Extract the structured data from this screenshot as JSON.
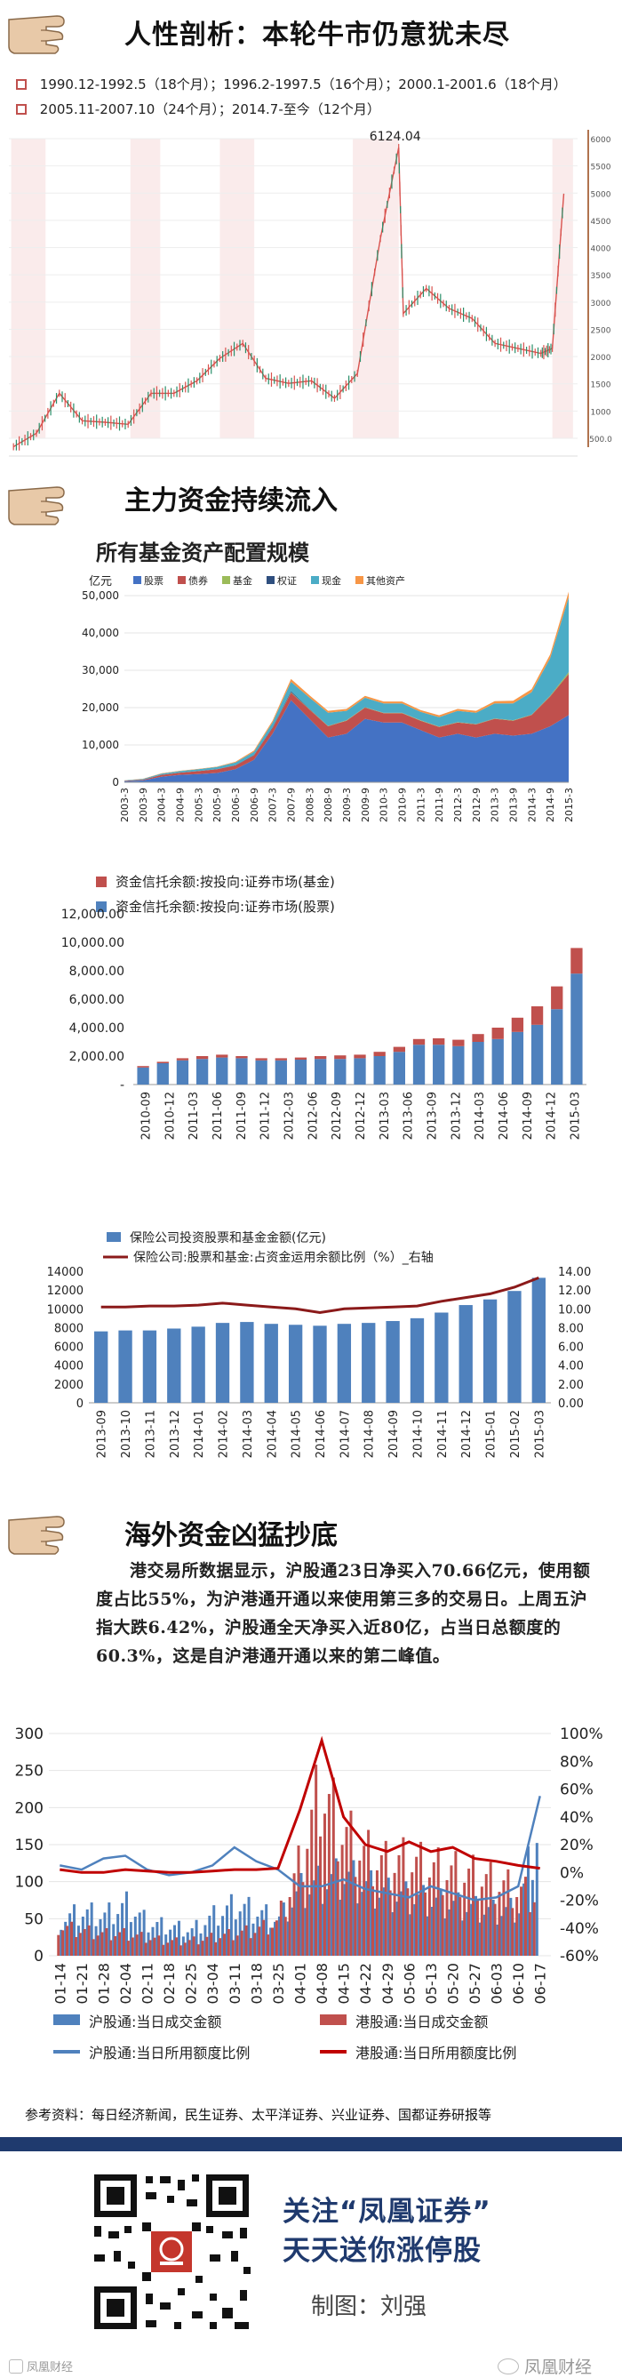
{
  "section1": {
    "title": "人性剖析：本轮牛市仍意犹未尽",
    "legend_line1": "1990.12-1992.5（18个月）；1996.2-1997.5（16个月）；2000.1-2001.6（18个月）",
    "legend_line2": "2005.11-2007.10（24个月）；2014.7-至今（12个月）",
    "chart_data": {
      "type": "line",
      "title": "",
      "peak_label": "6124.04",
      "y_ticks": [
        "6000",
        "5500",
        "5000",
        "4500",
        "4000",
        "3500",
        "3000",
        "2500",
        "2000",
        "1500",
        "1000",
        "500.0"
      ],
      "ylim": [
        300,
        6300
      ],
      "x": [
        1991,
        1992,
        1993,
        1994,
        1995,
        1996,
        1997,
        1998,
        1999,
        2000,
        2001,
        2002,
        2003,
        2004,
        2005,
        2006,
        2007,
        2007.8,
        2008,
        2009,
        2010,
        2011,
        2012,
        2013,
        2014,
        2014.5,
        2015
      ],
      "values": [
        130,
        400,
        1200,
        650,
        620,
        580,
        1200,
        1200,
        1450,
        1900,
        2200,
        1500,
        1400,
        1450,
        1100,
        1600,
        4300,
        6124,
        2800,
        3300,
        2900,
        2700,
        2200,
        2100,
        2000,
        2100,
        5200
      ],
      "highlight_periods": [
        [
          1990.9,
          1992.4
        ],
        [
          1996.1,
          1997.4
        ],
        [
          2000.0,
          2001.5
        ],
        [
          2005.8,
          2007.8
        ],
        [
          2014.5,
          2015.4
        ]
      ]
    }
  },
  "section2": {
    "title": "主力资金持续流入",
    "chart1": {
      "title": "所有基金资产配置规模",
      "unit": "亿元",
      "chart_data": {
        "type": "area",
        "categories": [
          "2003-3",
          "2003-9",
          "2004-3",
          "2004-9",
          "2005-3",
          "2005-9",
          "2006-3",
          "2006-9",
          "2007-3",
          "2007-9",
          "2008-3",
          "2008-9",
          "2009-3",
          "2009-9",
          "2010-3",
          "2010-9",
          "2011-3",
          "2011-9",
          "2012-3",
          "2012-9",
          "2013-3",
          "2013-9",
          "2014-3",
          "2014-9",
          "2015-3"
        ],
        "ylim": [
          0,
          50000
        ],
        "y_ticks": [
          "50,000",
          "40,000",
          "30,000",
          "20,000",
          "10,000",
          "0"
        ],
        "series": [
          {
            "name": "股票",
            "color": "#4472c4",
            "values": [
              300,
              500,
              1500,
              2000,
              2200,
              2500,
              3500,
              6000,
              13000,
              22000,
              17000,
              12000,
              13000,
              17000,
              16000,
              16000,
              14000,
              12000,
              13000,
              12000,
              13000,
              12500,
              13000,
              15000,
              18000
            ]
          },
          {
            "name": "债券",
            "color": "#c0504d",
            "values": [
              100,
              200,
              500,
              600,
              800,
              1000,
              1000,
              1200,
              1500,
              2000,
              2500,
              3000,
              3500,
              3000,
              2500,
              2500,
              2500,
              2800,
              3000,
              3500,
              4000,
              4000,
              5000,
              8000,
              11000
            ]
          },
          {
            "name": "基金",
            "color": "#9bbb59",
            "values": [
              0,
              0,
              0,
              0,
              0,
              0,
              0,
              0,
              0,
              100,
              100,
              100,
              100,
              100,
              100,
              100,
              100,
              100,
              100,
              100,
              100,
              100,
              100,
              200,
              500
            ]
          },
          {
            "name": "权证",
            "color": "#2f4f7f",
            "values": [
              0,
              0,
              0,
              0,
              0,
              0,
              100,
              100,
              200,
              300,
              100,
              50,
              50,
              50,
              50,
              50,
              50,
              50,
              50,
              50,
              50,
              50,
              50,
              50,
              50
            ]
          },
          {
            "name": "现金",
            "color": "#4bacc6",
            "values": [
              100,
              200,
              300,
              400,
              500,
              600,
              700,
              900,
              1300,
              2500,
              3000,
              3500,
              2500,
              2500,
              2500,
              2500,
              2200,
              2500,
              3000,
              3000,
              4000,
              4500,
              6000,
              10000,
              20000
            ]
          },
          {
            "name": "其他资产",
            "color": "#f79646",
            "values": [
              50,
              50,
              100,
              100,
              100,
              100,
              200,
              300,
              500,
              800,
              600,
              500,
              500,
              500,
              500,
              500,
              500,
              500,
              500,
              500,
              600,
              700,
              800,
              1000,
              1500
            ]
          }
        ]
      }
    },
    "chart2": {
      "chart_data": {
        "type": "bar",
        "categories": [
          "2010-09",
          "2010-10",
          "2010-12",
          "2011-03",
          "2011-04",
          "2011-06",
          "2011-09",
          "2011-10",
          "2011-12",
          "2012-03",
          "2012-06",
          "2012-09",
          "2012-10",
          "2012-12",
          "2013-03",
          "2013-06",
          "2013-09",
          "2013-12",
          "2014-03",
          "2014-06",
          "2014-09",
          "2014-12",
          "2015-03"
        ],
        "tick_labels": [
          "2010-09",
          "2010-12",
          "2011-03",
          "2011-06",
          "2011-09",
          "2011-12",
          "2012-03",
          "2012-06",
          "2012-09",
          "2012-12",
          "2013-03",
          "2013-06",
          "2013-09",
          "2013-12",
          "2014-03",
          "2014-06",
          "2014-09",
          "2014-12",
          "2015-03"
        ],
        "ylim": [
          0,
          12000
        ],
        "y_ticks": [
          "12,000.00",
          "10,000.00",
          "8,000.00",
          "6,000.00",
          "4,000.00",
          "2,000.00",
          "-"
        ],
        "series": [
          {
            "name": "资金信托余额:按投向:证券市场(基金)",
            "color": "#c0504d",
            "values": [
              100,
              100,
              150,
              200,
              200,
              150,
              150,
              150,
              150,
              200,
              250,
              250,
              300,
              350,
              400,
              450,
              450,
              550,
              800,
              1000,
              1300,
              1600,
              1800
            ]
          },
          {
            "name": "资金信托余额:按投向:证券市场(股票)",
            "color": "#4f81bd",
            "values": [
              1200,
              1500,
              1700,
              1800,
              1900,
              1850,
              1700,
              1700,
              1750,
              1800,
              1800,
              1850,
              2000,
              2300,
              2800,
              2800,
              2700,
              3000,
              3200,
              3700,
              4200,
              5300,
              7800
            ]
          }
        ]
      }
    },
    "chart3": {
      "chart_data": {
        "type": "bar",
        "categories": [
          "2013-09",
          "2013-10",
          "2013-11",
          "2013-12",
          "2014-01",
          "2014-02",
          "2014-03",
          "2014-04",
          "2014-05",
          "2014-06",
          "2014-07",
          "2014-08",
          "2014-09",
          "2014-10",
          "2014-11",
          "2014-12",
          "2015-01",
          "2015-02",
          "2015-03"
        ],
        "ylim": [
          0,
          14000
        ],
        "y_ticks": [
          "14000",
          "12000",
          "10000",
          "8000",
          "6000",
          "4000",
          "2000",
          "0"
        ],
        "y2lim": [
          0,
          14
        ],
        "y2_ticks": [
          "14.00",
          "12.00",
          "10.00",
          "8.00",
          "6.00",
          "4.00",
          "2.00",
          "0.00"
        ],
        "series": [
          {
            "name": "保险公司投资股票和基金金额(亿元)",
            "color": "#4f81bd",
            "values": [
              7600,
              7700,
              7700,
              7900,
              8100,
              8500,
              8600,
              8400,
              8300,
              8200,
              8400,
              8500,
              8700,
              9000,
              9600,
              10400,
              11000,
              11900,
              13300
            ]
          },
          {
            "name": "保险公司:股票和基金:占资金运用余额比例（%）_右轴",
            "color": "#8b1a1a",
            "values": [
              10.2,
              10.2,
              10.3,
              10.3,
              10.4,
              10.6,
              10.4,
              10.2,
              10.0,
              9.6,
              10.0,
              10.1,
              10.2,
              10.3,
              10.8,
              11.2,
              11.6,
              12.3,
              13.3
            ]
          }
        ]
      }
    }
  },
  "section3": {
    "title": "海外资金凶猛抄底",
    "paragraph": "港交易所数据显示，沪股通23日净买入70.66亿元，使用额度占比55%，为沪港通开通以来使用第三多的交易日。上周五沪指大跌6.42%，沪股通全天净买入近80亿，占当日总额度的60.3%，这是自沪港通开通以来的第二峰值。",
    "chart_data": {
      "type": "bar",
      "categories": [
        "01-14",
        "01-21",
        "01-28",
        "02-04",
        "02-11",
        "02-18",
        "02-25",
        "03-04",
        "03-11",
        "03-18",
        "03-25",
        "04-01",
        "04-08",
        "04-15",
        "04-22",
        "04-29",
        "05-06",
        "05-13",
        "05-20",
        "05-27",
        "06-03",
        "06-10",
        "06-17"
      ],
      "ylim": [
        0,
        300
      ],
      "y_ticks": [
        "300",
        "250",
        "200",
        "150",
        "100",
        "50",
        "0"
      ],
      "y2_ticks": [
        "100%",
        "80%",
        "60%",
        "40%",
        "20%",
        "0%",
        "-20%",
        "-40%",
        "-60%"
      ],
      "series": [
        {
          "name": "沪股通:当日成交金额",
          "color": "#4f81bd",
          "values": [
            50,
            60,
            55,
            70,
            45,
            40,
            35,
            55,
            70,
            60,
            50,
            90,
            100,
            110,
            95,
            85,
            80,
            75,
            70,
            65,
            60,
            65,
            200
          ]
        },
        {
          "name": "港股通:当日成交金额",
          "color": "#c0504d",
          "values": [
            40,
            35,
            30,
            30,
            25,
            20,
            20,
            25,
            30,
            35,
            45,
            120,
            230,
            170,
            140,
            125,
            130,
            120,
            115,
            110,
            100,
            90,
            80
          ]
        },
        {
          "name": "沪股通:当日所用额度比例",
          "color": "#4f81bd",
          "values": [
            5,
            2,
            10,
            12,
            2,
            -2,
            0,
            5,
            18,
            8,
            2,
            -10,
            -10,
            -5,
            -12,
            -15,
            -18,
            -10,
            -15,
            -20,
            -18,
            -10,
            55
          ]
        },
        {
          "name": "港股通:当日所用额度比例",
          "color": "#c00000",
          "values": [
            2,
            0,
            0,
            2,
            1,
            0,
            0,
            1,
            2,
            2,
            3,
            45,
            95,
            40,
            20,
            15,
            22,
            15,
            18,
            10,
            8,
            5,
            3
          ]
        }
      ]
    },
    "references": "参考资料：每日经济新闻，民生证券、太平洋证券、兴业证券、国都证券研报等"
  },
  "footer": {
    "line1": "关注“凤凰证券”",
    "line2": "天天送你涨停股",
    "author": "制图：刘强",
    "watermark_right": "凤凰财经",
    "watermark_left": "凤凰财经"
  },
  "colors": {
    "navy": "#1f3a6e",
    "brown_bar": "#b0734e",
    "hand": "#e8c9a8"
  }
}
